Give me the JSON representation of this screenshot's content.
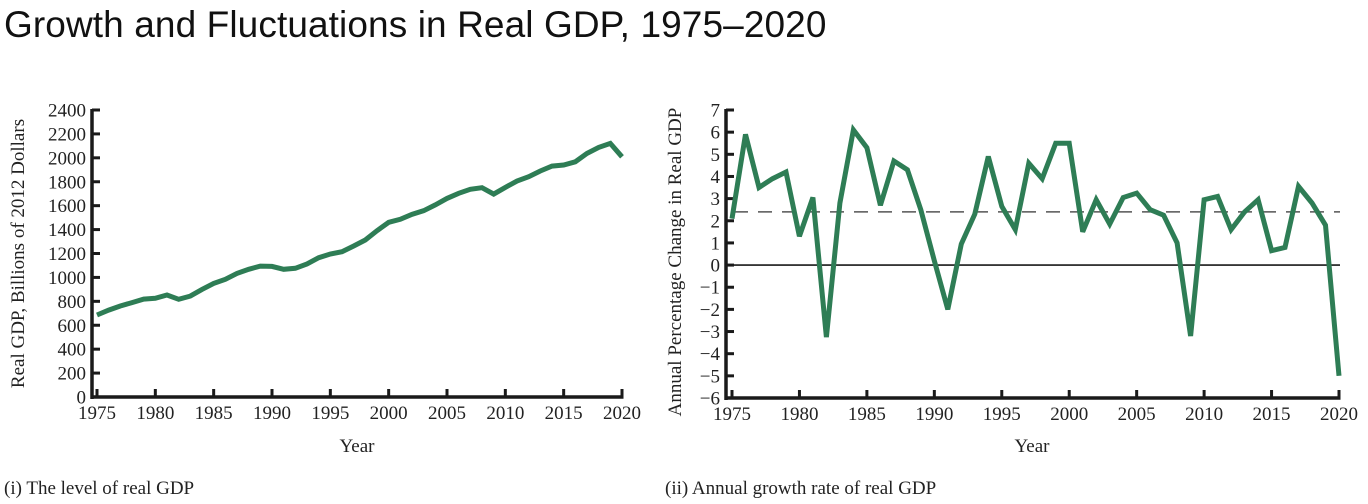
{
  "title": "Growth and Fluctuations in Real GDP, 1975–2020",
  "colors": {
    "series_line": "#2e7d55",
    "axis": "#1a1a1a",
    "dashed_reference": "#555555"
  },
  "chart_data": [
    {
      "id": "level",
      "type": "line",
      "caption": "(i) The level of real GDP",
      "xlabel": "Year",
      "ylabel": "Real GDP, Billions of 2012 Dollars",
      "xlim": [
        1975,
        2020
      ],
      "ylim": [
        0,
        2400
      ],
      "xticks": [
        1975,
        1980,
        1985,
        1990,
        1995,
        2000,
        2005,
        2010,
        2015,
        2020
      ],
      "yticks": [
        0,
        200,
        400,
        600,
        800,
        1000,
        1200,
        1400,
        1600,
        1800,
        2000,
        2200,
        2400
      ],
      "grid": false,
      "series": [
        {
          "name": "Real GDP",
          "x": [
            1975,
            1976,
            1977,
            1978,
            1979,
            1980,
            1981,
            1982,
            1983,
            1984,
            1985,
            1986,
            1987,
            1988,
            1989,
            1990,
            1991,
            1992,
            1993,
            1994,
            1995,
            1996,
            1997,
            1998,
            1999,
            2000,
            2001,
            2002,
            2003,
            2004,
            2005,
            2006,
            2007,
            2008,
            2009,
            2010,
            2011,
            2012,
            2013,
            2014,
            2015,
            2016,
            2017,
            2018,
            2019,
            2020
          ],
          "values": [
            686,
            727,
            761,
            789,
            819,
            825,
            853,
            817,
            844,
            900,
            950,
            984,
            1034,
            1068,
            1095,
            1092,
            1068,
            1076,
            1112,
            1165,
            1196,
            1215,
            1263,
            1313,
            1391,
            1461,
            1486,
            1528,
            1558,
            1606,
            1661,
            1703,
            1737,
            1750,
            1697,
            1753,
            1806,
            1842,
            1890,
            1931,
            1940,
            1967,
            2037,
            2087,
            2121,
            2009
          ]
        }
      ]
    },
    {
      "id": "growth",
      "type": "line",
      "caption": "(ii) Annual growth rate of real GDP",
      "xlabel": "Year",
      "ylabel": "Annual Percentage Change in Real GDP",
      "xlim": [
        1975,
        2020
      ],
      "ylim": [
        -6,
        7
      ],
      "xticks": [
        1975,
        1980,
        1985,
        1990,
        1995,
        2000,
        2005,
        2010,
        2015,
        2020
      ],
      "yticks": [
        -6,
        -5,
        -4,
        -3,
        -2,
        -1,
        0,
        1,
        2,
        3,
        4,
        5,
        6,
        7
      ],
      "ytick_labels": [
        "−6",
        "−5",
        "−4",
        "−3",
        "−2",
        "−1",
        "0",
        "1",
        "2",
        "3",
        "4",
        "5",
        "6",
        "7"
      ],
      "grid": false,
      "reference_lines": [
        {
          "name": "zero-line",
          "value": 0,
          "style": "solid"
        },
        {
          "name": "average-growth-line",
          "value": 2.4,
          "style": "dashed"
        }
      ],
      "series": [
        {
          "name": "Annual growth rate",
          "x": [
            1975,
            1976,
            1977,
            1978,
            1979,
            1980,
            1981,
            1982,
            1983,
            1984,
            1985,
            1986,
            1987,
            1988,
            1989,
            1990,
            1991,
            1992,
            1993,
            1994,
            1995,
            1996,
            1997,
            1998,
            1999,
            2000,
            2001,
            2002,
            2003,
            2004,
            2005,
            2006,
            2007,
            2008,
            2009,
            2010,
            2011,
            2012,
            2013,
            2014,
            2015,
            2016,
            2017,
            2018,
            2019,
            2020
          ],
          "values": [
            2.1,
            5.9,
            3.5,
            3.9,
            4.2,
            1.3,
            3.05,
            -3.25,
            2.8,
            6.1,
            5.3,
            2.7,
            4.7,
            4.3,
            2.5,
            0.2,
            -2.0,
            0.95,
            2.3,
            4.9,
            2.65,
            1.6,
            4.6,
            3.9,
            5.5,
            5.5,
            1.5,
            2.95,
            1.85,
            3.05,
            3.25,
            2.5,
            2.25,
            1.0,
            -3.2,
            2.95,
            3.1,
            1.6,
            2.4,
            2.95,
            0.65,
            0.8,
            3.55,
            2.8,
            1.8,
            -5.0
          ]
        }
      ]
    }
  ]
}
